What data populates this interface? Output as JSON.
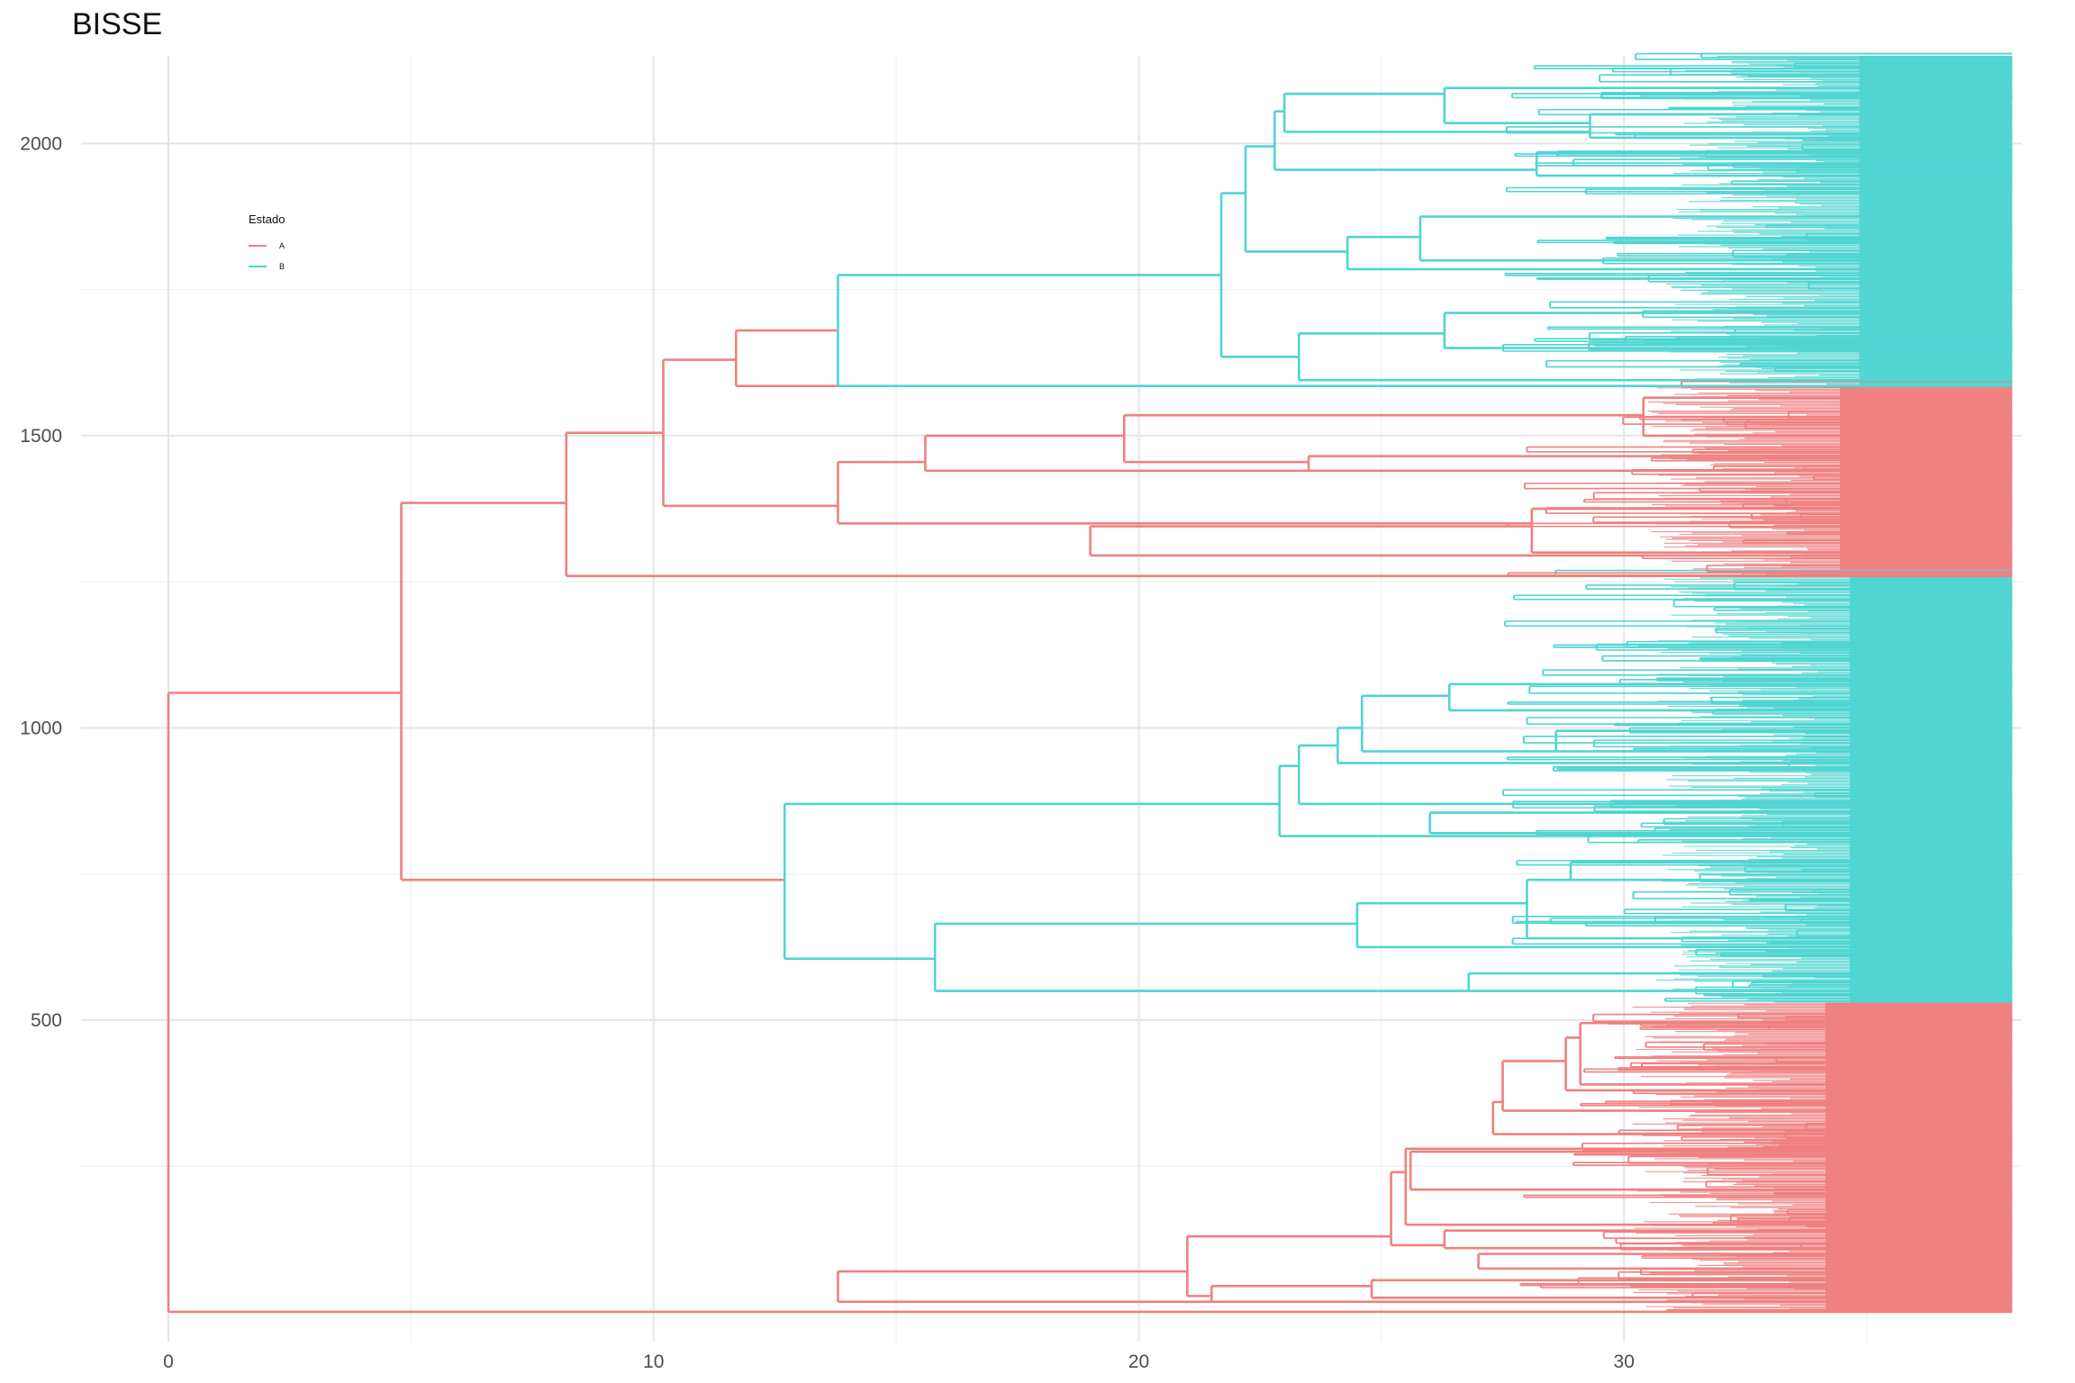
{
  "chart_data": {
    "type": "line",
    "subtype": "phylogenetic-tree",
    "title": "BISSE",
    "xlabel": "",
    "ylabel": "",
    "xlim": [
      -1.8,
      38.2
    ],
    "ylim": [
      -50,
      2150
    ],
    "x_ticks": [
      0,
      10,
      20,
      30
    ],
    "y_ticks": [
      500,
      1000,
      1500,
      2000
    ],
    "tip_x": 38,
    "grid": true,
    "legend": {
      "title": "Estado",
      "position": "top-left",
      "entries": [
        {
          "label": "A",
          "color": "#F08080"
        },
        {
          "label": "B",
          "color": "#4FD5D2"
        }
      ]
    },
    "tip_blocks": [
      {
        "state": "A",
        "y0": 0,
        "y1": 530,
        "x_start": 33.5
      },
      {
        "state": "B",
        "y0": 530,
        "y1": 1260,
        "x_start": 34.0
      },
      {
        "state": "A",
        "y0": 1260,
        "y1": 1585,
        "x_start": 33.8
      },
      {
        "state": "B",
        "y0": 1585,
        "y1": 2150,
        "x_start": 34.2
      }
    ],
    "nodes": [
      {
        "x": 0,
        "y0": 1,
        "y1": 1060,
        "state": "A"
      },
      {
        "x": 4.8,
        "y0": 740,
        "y1": 1385,
        "state": "A"
      },
      {
        "x": 8.2,
        "y0": 1260,
        "y1": 1505,
        "state": "A"
      },
      {
        "x": 10.2,
        "y0": 1380,
        "y1": 1630,
        "state": "A"
      },
      {
        "x": 11.7,
        "y0": 1585,
        "y1": 1680,
        "state": "A"
      },
      {
        "x": 13.8,
        "y0": 1350,
        "y1": 1455,
        "state": "A"
      },
      {
        "x": 15.6,
        "y0": 1440,
        "y1": 1500,
        "state": "A"
      },
      {
        "x": 19.0,
        "y0": 1295,
        "y1": 1345,
        "state": "A"
      },
      {
        "x": 19.7,
        "y0": 1455,
        "y1": 1535,
        "state": "A"
      },
      {
        "x": 23.5,
        "y0": 1440,
        "y1": 1465,
        "state": "A"
      },
      {
        "x": 28.1,
        "y0": 1300,
        "y1": 1375,
        "state": "A"
      },
      {
        "x": 30.4,
        "y0": 1500,
        "y1": 1565,
        "state": "A"
      },
      {
        "x": 13.8,
        "y0": 1585,
        "y1": 1775,
        "state": "B"
      },
      {
        "x": 21.7,
        "y0": 1635,
        "y1": 1915,
        "state": "B"
      },
      {
        "x": 22.2,
        "y0": 1815,
        "y1": 1995,
        "state": "B"
      },
      {
        "x": 22.8,
        "y0": 1955,
        "y1": 2055,
        "state": "B"
      },
      {
        "x": 23.0,
        "y0": 2020,
        "y1": 2085,
        "state": "B"
      },
      {
        "x": 23.3,
        "y0": 1595,
        "y1": 1675,
        "state": "B"
      },
      {
        "x": 24.3,
        "y0": 1785,
        "y1": 1840,
        "state": "B"
      },
      {
        "x": 25.8,
        "y0": 1800,
        "y1": 1875,
        "state": "B"
      },
      {
        "x": 26.3,
        "y0": 1650,
        "y1": 1710,
        "state": "B"
      },
      {
        "x": 26.3,
        "y0": 2035,
        "y1": 2095,
        "state": "B"
      },
      {
        "x": 28.2,
        "y0": 1945,
        "y1": 1985,
        "state": "B"
      },
      {
        "x": 29.3,
        "y0": 2010,
        "y1": 2050,
        "state": "B"
      },
      {
        "x": 12.7,
        "y0": 605,
        "y1": 870,
        "state": "B"
      },
      {
        "x": 15.8,
        "y0": 550,
        "y1": 665,
        "state": "B"
      },
      {
        "x": 22.9,
        "y0": 815,
        "y1": 935,
        "state": "B"
      },
      {
        "x": 23.3,
        "y0": 870,
        "y1": 970,
        "state": "B"
      },
      {
        "x": 24.1,
        "y0": 940,
        "y1": 1000,
        "state": "B"
      },
      {
        "x": 24.5,
        "y0": 625,
        "y1": 700,
        "state": "B"
      },
      {
        "x": 24.6,
        "y0": 960,
        "y1": 1055,
        "state": "B"
      },
      {
        "x": 26.0,
        "y0": 820,
        "y1": 855,
        "state": "B"
      },
      {
        "x": 26.4,
        "y0": 1030,
        "y1": 1075,
        "state": "B"
      },
      {
        "x": 26.8,
        "y0": 550,
        "y1": 580,
        "state": "B"
      },
      {
        "x": 28.0,
        "y0": 640,
        "y1": 740,
        "state": "B"
      },
      {
        "x": 28.6,
        "y0": 960,
        "y1": 995,
        "state": "B"
      },
      {
        "x": 28.9,
        "y0": 740,
        "y1": 770,
        "state": "B"
      },
      {
        "x": 13.8,
        "y0": 18,
        "y1": 70,
        "state": "A"
      },
      {
        "x": 21.0,
        "y0": 28,
        "y1": 130,
        "state": "A"
      },
      {
        "x": 21.5,
        "y0": 18,
        "y1": 45,
        "state": "A"
      },
      {
        "x": 24.8,
        "y0": 25,
        "y1": 55,
        "state": "A"
      },
      {
        "x": 25.2,
        "y0": 115,
        "y1": 240,
        "state": "A"
      },
      {
        "x": 25.5,
        "y0": 150,
        "y1": 280,
        "state": "A"
      },
      {
        "x": 25.6,
        "y0": 210,
        "y1": 275,
        "state": "A"
      },
      {
        "x": 26.3,
        "y0": 110,
        "y1": 140,
        "state": "A"
      },
      {
        "x": 27.0,
        "y0": 75,
        "y1": 100,
        "state": "A"
      },
      {
        "x": 27.3,
        "y0": 305,
        "y1": 360,
        "state": "A"
      },
      {
        "x": 27.5,
        "y0": 345,
        "y1": 430,
        "state": "A"
      },
      {
        "x": 28.8,
        "y0": 380,
        "y1": 470,
        "state": "A"
      },
      {
        "x": 29.1,
        "y0": 390,
        "y1": 495,
        "state": "A"
      }
    ]
  }
}
